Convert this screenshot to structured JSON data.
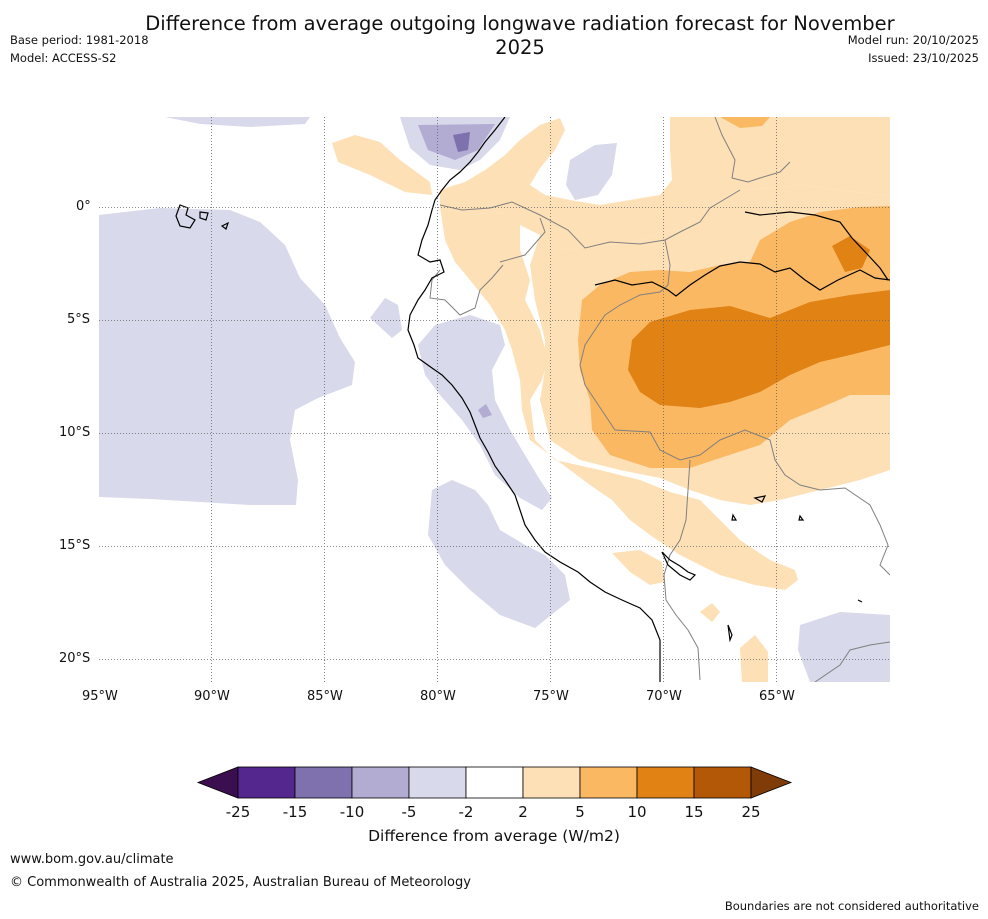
{
  "title": "Difference from average outgoing longwave radiation forecast for November 2025",
  "meta_left": [
    "Base period: 1981-2018",
    "Model: ACCESS-S2"
  ],
  "meta_right": [
    "Model run: 20/10/2025",
    "Issued: 23/10/2025"
  ],
  "map": {
    "lon_range": [
      -95,
      -60
    ],
    "lat_range": [
      -21,
      4
    ],
    "lat_ticks": [
      {
        "value": 0,
        "label": "0°"
      },
      {
        "value": -5,
        "label": "5°S"
      },
      {
        "value": -10,
        "label": "10°S"
      },
      {
        "value": -15,
        "label": "15°S"
      },
      {
        "value": -20,
        "label": "20°S"
      }
    ],
    "lon_ticks": [
      {
        "value": -95,
        "label": "95°W"
      },
      {
        "value": -90,
        "label": "90°W"
      },
      {
        "value": -85,
        "label": "85°W"
      },
      {
        "value": -80,
        "label": "80°W"
      },
      {
        "value": -75,
        "label": "75°W"
      },
      {
        "value": -70,
        "label": "70°W"
      },
      {
        "value": -65,
        "label": "65°W"
      }
    ]
  },
  "colorbar": {
    "label": "Difference from average (W/m2)",
    "tick_labels": [
      "-25",
      "-15",
      "-10",
      "-5",
      "-2",
      "2",
      "5",
      "10",
      "15",
      "25"
    ],
    "colors": [
      "#3b0f4f",
      "#54278f",
      "#7f70ae",
      "#b2abd2",
      "#d8d9ea",
      "#ffffff",
      "#fee0b6",
      "#fbb863",
      "#e08214",
      "#b35806",
      "#7f3b08"
    ]
  },
  "footer": {
    "website": "www.bom.gov.au/climate",
    "copyright": "© Commonwealth of Australia 2025, Australian Bureau of Meteorology",
    "disclaimer": "Boundaries are not considered authoritative"
  }
}
